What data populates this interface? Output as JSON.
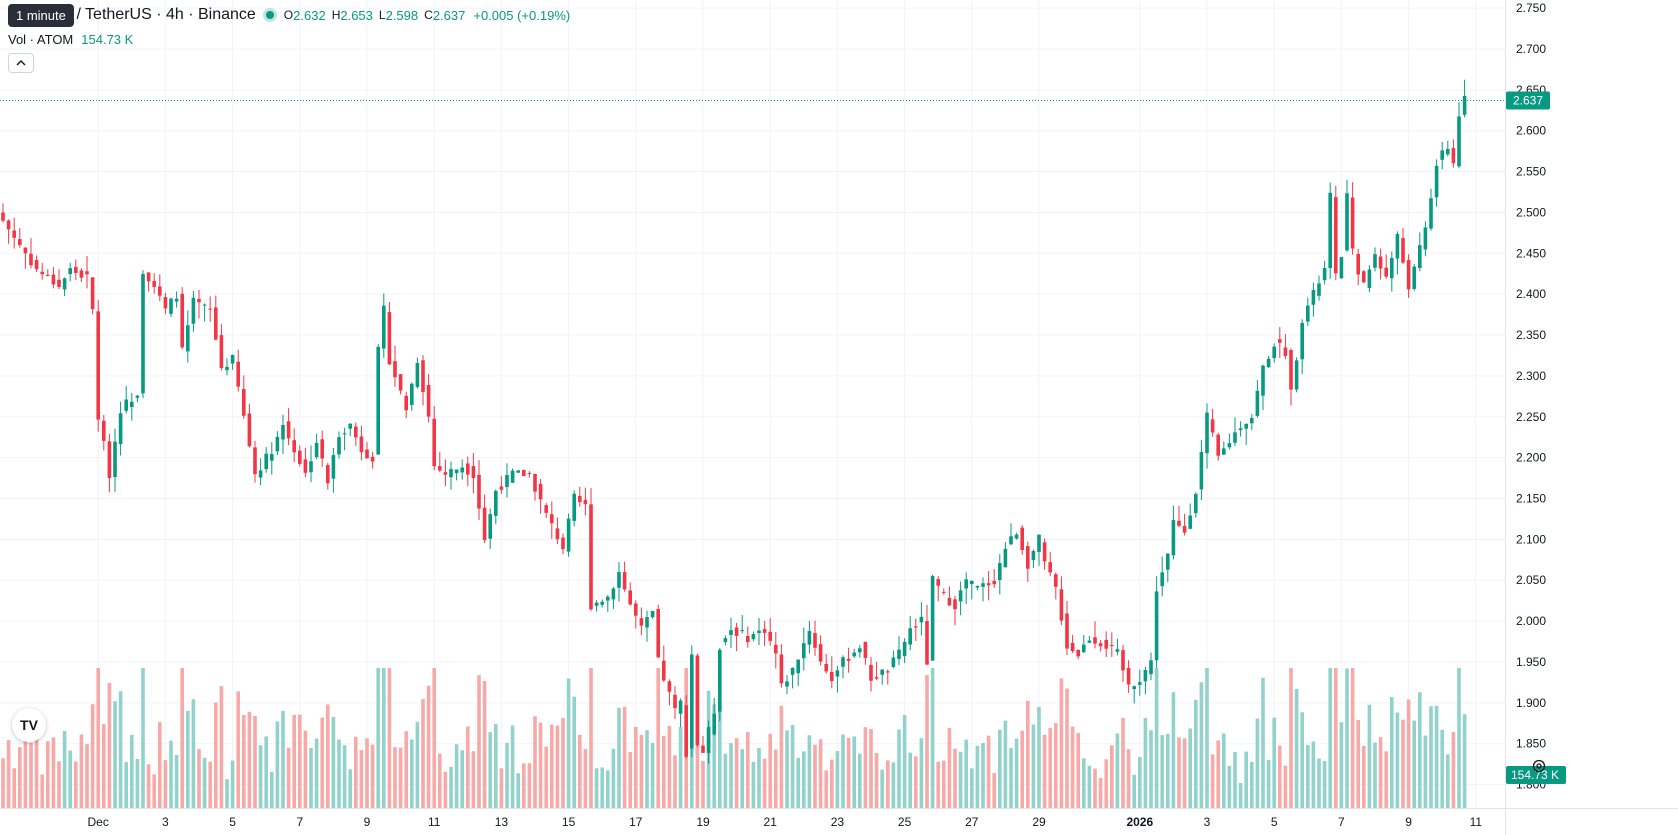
{
  "tooltip": "1 minute",
  "header": {
    "symbol": "s / TetherUS · 4h · Binance",
    "o_label": "O",
    "o": "2.632",
    "h_label": "H",
    "h": "2.653",
    "l_label": "L",
    "l": "2.598",
    "c_label": "C",
    "c": "2.637",
    "change": "+0.005 (+0.19%)"
  },
  "volume_legend": {
    "label": "Vol · ATOM",
    "value": "154.73 K"
  },
  "colors": {
    "up": "#089981",
    "down": "#f23645",
    "vol_up": "#91d3cb",
    "vol_down": "#f7a9a7"
  },
  "icons": {
    "collapse": "chevron-up-icon",
    "logo": "tradingview-logo-icon",
    "settings": "gear-icon"
  },
  "logo_text": "TV",
  "chart_data": {
    "type": "candlestick",
    "interval": "4h",
    "y_range": [
      1.775,
      2.755
    ],
    "y_ticks": [
      "2.750",
      "2.700",
      "2.650",
      "2.600",
      "2.550",
      "2.500",
      "2.450",
      "2.400",
      "2.350",
      "2.300",
      "2.250",
      "2.200",
      "2.150",
      "2.100",
      "2.050",
      "2.000",
      "1.950",
      "1.900",
      "1.850",
      "1.800"
    ],
    "x_ticks": [
      {
        "label": "Dec",
        "index": 17
      },
      {
        "label": "3",
        "index": 29
      },
      {
        "label": "5",
        "index": 41
      },
      {
        "label": "7",
        "index": 53
      },
      {
        "label": "9",
        "index": 65
      },
      {
        "label": "11",
        "index": 77
      },
      {
        "label": "13",
        "index": 89
      },
      {
        "label": "15",
        "index": 101
      },
      {
        "label": "17",
        "index": 113
      },
      {
        "label": "19",
        "index": 125
      },
      {
        "label": "21",
        "index": 137
      },
      {
        "label": "23",
        "index": 149
      },
      {
        "label": "25",
        "index": 161
      },
      {
        "label": "27",
        "index": 173
      },
      {
        "label": "29",
        "index": 185
      },
      {
        "label": "2026",
        "index": 203
      },
      {
        "label": "3",
        "index": 215
      },
      {
        "label": "5",
        "index": 227
      },
      {
        "label": "7",
        "index": 239
      },
      {
        "label": "9",
        "index": 251
      },
      {
        "label": "11",
        "index": 263
      }
    ],
    "price_label": "2.637",
    "current_price": 2.637,
    "volume_label": "154.73 K",
    "anchors": [
      [
        0,
        2.49
      ],
      [
        3,
        2.46
      ],
      [
        6,
        2.43
      ],
      [
        10,
        2.41
      ],
      [
        12,
        2.43
      ],
      [
        15,
        2.42
      ],
      [
        16,
        2.38
      ],
      [
        17,
        2.25
      ],
      [
        19,
        2.18
      ],
      [
        21,
        2.26
      ],
      [
        24,
        2.28
      ],
      [
        25,
        2.43
      ],
      [
        27,
        2.41
      ],
      [
        29,
        2.38
      ],
      [
        31,
        2.4
      ],
      [
        32,
        2.33
      ],
      [
        34,
        2.39
      ],
      [
        37,
        2.38
      ],
      [
        39,
        2.31
      ],
      [
        41,
        2.32
      ],
      [
        43,
        2.25
      ],
      [
        45,
        2.18
      ],
      [
        48,
        2.21
      ],
      [
        50,
        2.24
      ],
      [
        52,
        2.21
      ],
      [
        54,
        2.18
      ],
      [
        56,
        2.22
      ],
      [
        58,
        2.17
      ],
      [
        60,
        2.23
      ],
      [
        62,
        2.24
      ],
      [
        64,
        2.21
      ],
      [
        66,
        2.2
      ],
      [
        67,
        2.33
      ],
      [
        68,
        2.38
      ],
      [
        69,
        2.32
      ],
      [
        72,
        2.26
      ],
      [
        74,
        2.32
      ],
      [
        76,
        2.25
      ],
      [
        77,
        2.19
      ],
      [
        79,
        2.18
      ],
      [
        82,
        2.19
      ],
      [
        84,
        2.18
      ],
      [
        86,
        2.1
      ],
      [
        88,
        2.16
      ],
      [
        91,
        2.18
      ],
      [
        94,
        2.18
      ],
      [
        97,
        2.13
      ],
      [
        100,
        2.09
      ],
      [
        102,
        2.15
      ],
      [
        104,
        2.14
      ],
      [
        105,
        2.02
      ],
      [
        108,
        2.03
      ],
      [
        110,
        2.06
      ],
      [
        112,
        2.02
      ],
      [
        114,
        1.99
      ],
      [
        116,
        2.01
      ],
      [
        117,
        1.95
      ],
      [
        118,
        1.93
      ],
      [
        120,
        1.89
      ],
      [
        121,
        1.9
      ],
      [
        122,
        1.84
      ],
      [
        123,
        1.96
      ],
      [
        124,
        1.85
      ],
      [
        125,
        1.84
      ],
      [
        127,
        1.89
      ],
      [
        128,
        1.97
      ],
      [
        130,
        1.99
      ],
      [
        133,
        1.98
      ],
      [
        136,
        1.99
      ],
      [
        138,
        1.96
      ],
      [
        139,
        1.92
      ],
      [
        141,
        1.94
      ],
      [
        144,
        1.99
      ],
      [
        146,
        1.95
      ],
      [
        148,
        1.93
      ],
      [
        150,
        1.95
      ],
      [
        153,
        1.97
      ],
      [
        155,
        1.93
      ],
      [
        158,
        1.94
      ],
      [
        160,
        1.96
      ],
      [
        162,
        1.99
      ],
      [
        164,
        2.0
      ],
      [
        165,
        1.95
      ],
      [
        166,
        2.05
      ],
      [
        168,
        2.03
      ],
      [
        170,
        2.02
      ],
      [
        172,
        2.05
      ],
      [
        174,
        2.04
      ],
      [
        177,
        2.05
      ],
      [
        179,
        2.09
      ],
      [
        181,
        2.11
      ],
      [
        183,
        2.07
      ],
      [
        185,
        2.1
      ],
      [
        186,
        2.07
      ],
      [
        188,
        2.04
      ],
      [
        190,
        1.97
      ],
      [
        192,
        1.96
      ],
      [
        194,
        1.98
      ],
      [
        197,
        1.97
      ],
      [
        199,
        1.96
      ],
      [
        201,
        1.92
      ],
      [
        203,
        1.93
      ],
      [
        205,
        1.95
      ],
      [
        206,
        2.04
      ],
      [
        208,
        2.08
      ],
      [
        209,
        2.12
      ],
      [
        211,
        2.11
      ],
      [
        213,
        2.16
      ],
      [
        215,
        2.25
      ],
      [
        217,
        2.2
      ],
      [
        219,
        2.22
      ],
      [
        221,
        2.24
      ],
      [
        223,
        2.25
      ],
      [
        225,
        2.31
      ],
      [
        227,
        2.34
      ],
      [
        229,
        2.33
      ],
      [
        230,
        2.28
      ],
      [
        232,
        2.37
      ],
      [
        234,
        2.4
      ],
      [
        236,
        2.43
      ],
      [
        237,
        2.52
      ],
      [
        238,
        2.42
      ],
      [
        239,
        2.45
      ],
      [
        240,
        2.52
      ],
      [
        241,
        2.45
      ],
      [
        243,
        2.41
      ],
      [
        245,
        2.45
      ],
      [
        247,
        2.42
      ],
      [
        249,
        2.47
      ],
      [
        251,
        2.41
      ],
      [
        252,
        2.43
      ],
      [
        254,
        2.48
      ],
      [
        256,
        2.56
      ],
      [
        258,
        2.58
      ],
      [
        259,
        2.56
      ],
      [
        260,
        2.62
      ],
      [
        261,
        2.637
      ]
    ],
    "volume_max": 1.0
  }
}
